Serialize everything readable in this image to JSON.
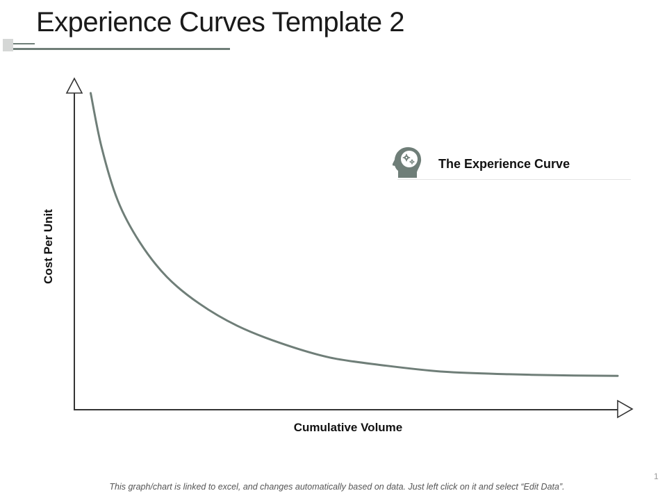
{
  "title": "Experience Curves Template 2",
  "colors": {
    "curve": "#6f7e78",
    "axis": "#333333",
    "accent": "#6f7e78"
  },
  "legend": {
    "icon": "head-gears-icon"
  },
  "chart_data": {
    "type": "line",
    "xlabel": "Cumulative Volume",
    "ylabel": "Cost Per Unit",
    "xlim": [
      0,
      100
    ],
    "ylim": [
      0,
      100
    ],
    "grid": false,
    "legend_position": "top-right",
    "series": [
      {
        "name": "The Experience Curve",
        "x": [
          3,
          5,
          8,
          12,
          17,
          23,
          30,
          38,
          47,
          57,
          68,
          80,
          92,
          100
        ],
        "y": [
          100,
          83,
          66,
          53,
          42,
          33.5,
          26.5,
          21,
          16.5,
          14,
          12,
          11.2,
          10.8,
          10.7
        ]
      }
    ]
  },
  "page_number": "1",
  "footer": "This graph/chart is linked to excel, and changes automatically based on data.  Just left click on it and select “Edit Data”."
}
